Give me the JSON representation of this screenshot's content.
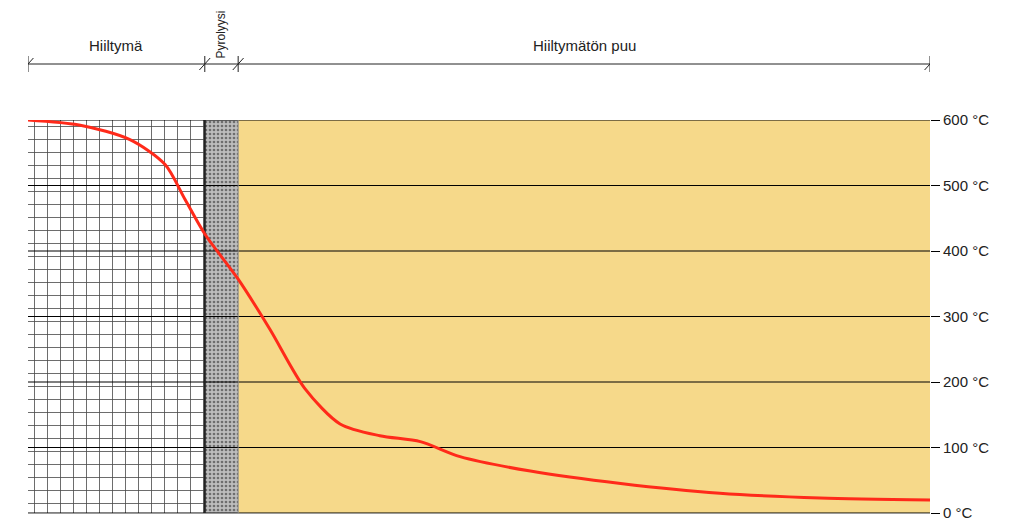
{
  "chart_data": {
    "type": "line",
    "x": [
      0,
      5.8,
      11.3,
      15.2,
      17.4,
      19.6,
      23.3,
      26.8,
      30.7,
      34.6,
      39.0,
      43.5,
      47.9,
      55.7,
      65.7,
      76.7,
      87.8,
      100
    ],
    "values": [
      600,
      592,
      570,
      532,
      479,
      426,
      357,
      281,
      190,
      136,
      118,
      109,
      86,
      64,
      45,
      30,
      23,
      20
    ],
    "color": "#ff2a1a",
    "xlim": [
      0,
      100
    ],
    "ylim": [
      0,
      600
    ],
    "yticks": [
      {
        "value": 0,
        "label": "0 °C"
      },
      {
        "value": 100,
        "label": "100 °C"
      },
      {
        "value": 200,
        "label": "200 °C"
      },
      {
        "value": 300,
        "label": "300 °C"
      },
      {
        "value": 400,
        "label": "400 °C"
      },
      {
        "value": 500,
        "label": "500 °C"
      },
      {
        "value": 600,
        "label": "600 °C"
      }
    ],
    "grid": true,
    "tick_labels": "y",
    "zones": [
      {
        "label": "Hiiltymä",
        "start": 0,
        "end": 19.6,
        "color": "#ffffff"
      },
      {
        "label": "Pyrolyysi",
        "start": 19.6,
        "end": 23.3,
        "color": "#bdbdbd"
      },
      {
        "label": "Hiiltymätön puu",
        "start": 23.3,
        "end": 100,
        "color": "#f6d98a"
      }
    ]
  }
}
